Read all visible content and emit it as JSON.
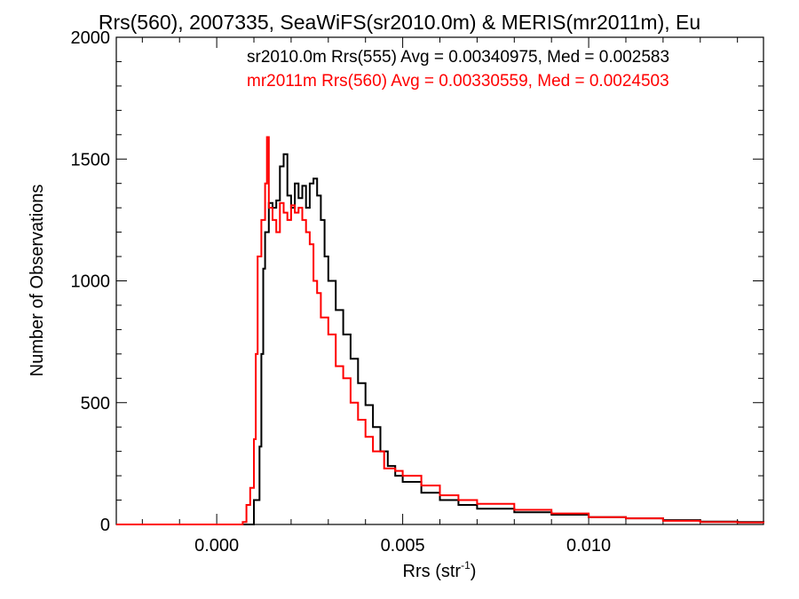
{
  "chart_data": {
    "type": "line",
    "title": "Rrs(560), 2007335, SeaWiFS(sr2010.0m) & MERIS(mr2011m), Eu",
    "xlabel": "Rrs (str",
    "xlabel_sup": "-1",
    "xlabel_end": ")",
    "ylabel": "Number of Observations",
    "xlim": [
      -0.0027,
      0.0147
    ],
    "ylim": [
      0,
      2000
    ],
    "xticks": [
      0.0,
      0.005,
      0.01
    ],
    "xtick_labels": [
      "0.000",
      "0.005",
      "0.010"
    ],
    "yticks": [
      0,
      500,
      1000,
      1500,
      2000
    ],
    "ytick_labels": [
      "0",
      "500",
      "1000",
      "1500",
      "2000"
    ],
    "grid": false,
    "legend_position": "top",
    "series": [
      {
        "color": "#000000",
        "label": "sr2010.0m Rrs(555) Avg = 0.00340975, Med = 0.002583",
        "points": [
          [
            -0.0027,
            0
          ],
          [
            0.0004,
            0
          ],
          [
            0.0009,
            0
          ],
          [
            0.001,
            100
          ],
          [
            0.00115,
            320
          ],
          [
            0.0012,
            700
          ],
          [
            0.00125,
            1050
          ],
          [
            0.0013,
            1200
          ],
          [
            0.0014,
            1320
          ],
          [
            0.0015,
            1300
          ],
          [
            0.0016,
            1330
          ],
          [
            0.0017,
            1470
          ],
          [
            0.0018,
            1520
          ],
          [
            0.0019,
            1350
          ],
          [
            0.002,
            1300
          ],
          [
            0.0021,
            1400
          ],
          [
            0.0022,
            1340
          ],
          [
            0.0023,
            1390
          ],
          [
            0.0024,
            1300
          ],
          [
            0.0025,
            1400
          ],
          [
            0.0026,
            1420
          ],
          [
            0.0027,
            1350
          ],
          [
            0.0028,
            1250
          ],
          [
            0.0029,
            1100
          ],
          [
            0.003,
            1000
          ],
          [
            0.0032,
            880
          ],
          [
            0.0034,
            780
          ],
          [
            0.0036,
            680
          ],
          [
            0.0038,
            580
          ],
          [
            0.004,
            490
          ],
          [
            0.0042,
            400
          ],
          [
            0.0044,
            300
          ],
          [
            0.0046,
            240
          ],
          [
            0.0048,
            200
          ],
          [
            0.005,
            175
          ],
          [
            0.0055,
            130
          ],
          [
            0.006,
            100
          ],
          [
            0.0065,
            80
          ],
          [
            0.007,
            65
          ],
          [
            0.008,
            50
          ],
          [
            0.009,
            40
          ],
          [
            0.01,
            30
          ],
          [
            0.011,
            25
          ],
          [
            0.012,
            18
          ],
          [
            0.013,
            12
          ],
          [
            0.014,
            10
          ],
          [
            0.0147,
            8
          ]
        ]
      },
      {
        "color": "#ff0000",
        "label": "mr2011m Rrs(560) Avg = 0.00330559, Med = 0.0024503",
        "points": [
          [
            -0.0027,
            0
          ],
          [
            0.0004,
            0
          ],
          [
            0.0007,
            10
          ],
          [
            0.0008,
            80
          ],
          [
            0.0009,
            150
          ],
          [
            0.001,
            350
          ],
          [
            0.00105,
            700
          ],
          [
            0.0011,
            1100
          ],
          [
            0.0012,
            1250
          ],
          [
            0.0013,
            1400
          ],
          [
            0.00135,
            1590
          ],
          [
            0.0014,
            1300
          ],
          [
            0.0015,
            1250
          ],
          [
            0.0016,
            1200
          ],
          [
            0.0017,
            1320
          ],
          [
            0.0018,
            1280
          ],
          [
            0.0019,
            1250
          ],
          [
            0.002,
            1310
          ],
          [
            0.0021,
            1280
          ],
          [
            0.0022,
            1300
          ],
          [
            0.0023,
            1250
          ],
          [
            0.0024,
            1200
          ],
          [
            0.0025,
            1150
          ],
          [
            0.0026,
            1000
          ],
          [
            0.0027,
            950
          ],
          [
            0.0028,
            850
          ],
          [
            0.003,
            780
          ],
          [
            0.0032,
            650
          ],
          [
            0.0034,
            600
          ],
          [
            0.0036,
            500
          ],
          [
            0.0038,
            430
          ],
          [
            0.004,
            360
          ],
          [
            0.0042,
            300
          ],
          [
            0.0045,
            230
          ],
          [
            0.0048,
            220
          ],
          [
            0.005,
            200
          ],
          [
            0.0055,
            160
          ],
          [
            0.006,
            120
          ],
          [
            0.0065,
            100
          ],
          [
            0.007,
            85
          ],
          [
            0.008,
            60
          ],
          [
            0.009,
            45
          ],
          [
            0.01,
            30
          ],
          [
            0.011,
            25
          ],
          [
            0.012,
            15
          ],
          [
            0.013,
            10
          ],
          [
            0.014,
            8
          ],
          [
            0.0147,
            6
          ]
        ]
      }
    ]
  }
}
